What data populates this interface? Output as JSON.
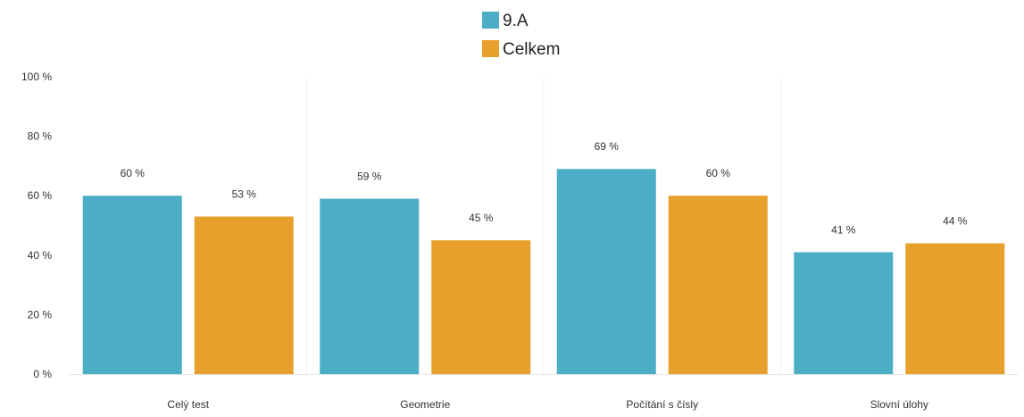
{
  "chart_data": {
    "type": "bar",
    "categories": [
      "Celý test",
      "Geometrie",
      "Počítání s čísly",
      "Slovní úlohy"
    ],
    "series": [
      {
        "name": "9.A",
        "color": "#4badc6",
        "values": [
          60,
          59,
          69,
          41
        ],
        "labels": [
          "60 %",
          "59 %",
          "69 %",
          "41 %"
        ]
      },
      {
        "name": "Celkem",
        "color": "#e8a02c",
        "values": [
          53,
          45,
          60,
          44
        ],
        "labels": [
          "53 %",
          "45 %",
          "60 %",
          "44 %"
        ]
      }
    ],
    "ylim": [
      0,
      100
    ],
    "yticks": [
      0,
      20,
      40,
      60,
      80,
      100
    ],
    "ytick_labels": [
      "0 %",
      "20 %",
      "40 %",
      "60 %",
      "80 %",
      "100 %"
    ],
    "grid": "vertical-separators",
    "legend_position": "top-center",
    "title": "",
    "xlabel": "",
    "ylabel": ""
  }
}
